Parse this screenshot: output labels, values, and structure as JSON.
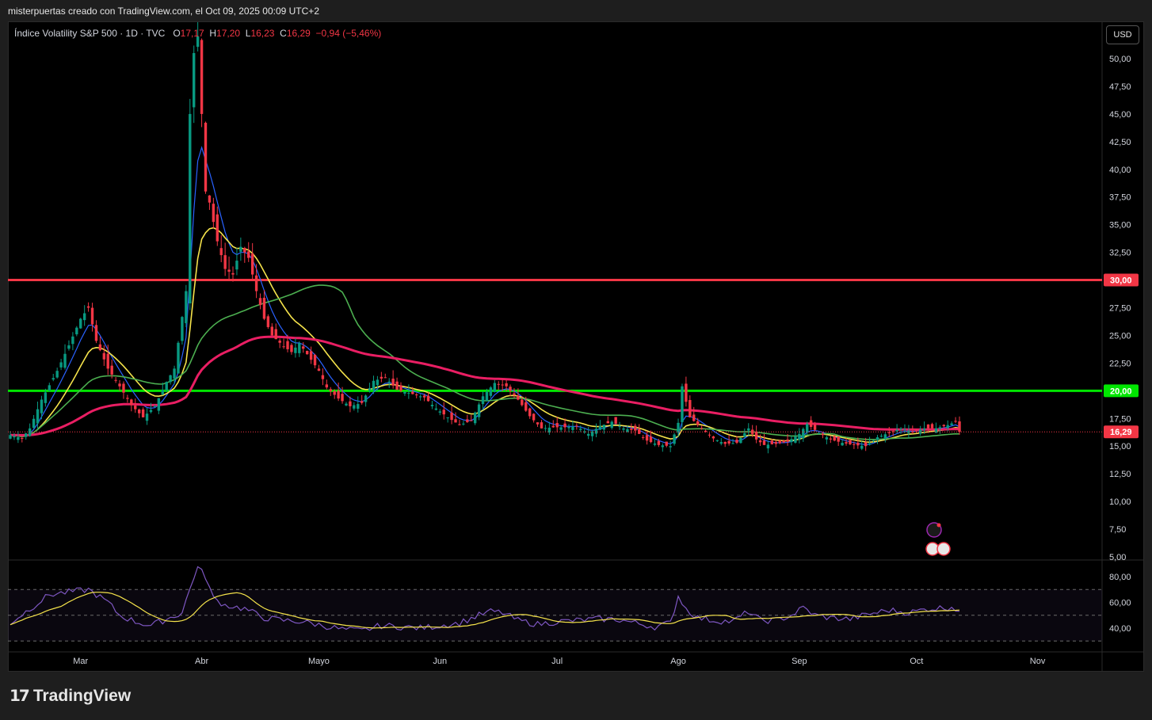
{
  "header": {
    "credit": "misterpuertas creado con TradingView.com, el Oct 09, 2025 00:09 UTC+2"
  },
  "legend": {
    "symbol": "Índice Volatility S&P 500 · 1D · TVC",
    "o_label": "O",
    "o_value": "17,17",
    "h_label": "H",
    "h_value": "17,20",
    "l_label": "L",
    "l_value": "16,23",
    "c_label": "C",
    "c_value": "16,29",
    "change": "−0,94 (−5,46%)"
  },
  "currency_button": "USD",
  "footer": {
    "brand": "TradingView"
  },
  "colors": {
    "up": "#089981",
    "down": "#f23645",
    "level_30": "#f23645",
    "level_20": "#00e600",
    "ma_blue": "#2962ff",
    "ma_yellow": "#f5e34b",
    "ma_green": "#4caf50",
    "ma_pink": "#e91e63",
    "rsi_line": "#7e57c2",
    "rsi_ma": "#f5e34b"
  },
  "chart_data": {
    "type": "candlestick",
    "price_axis": {
      "min": 5,
      "max": 52,
      "ticks": [
        "50,00",
        "47,50",
        "45,00",
        "42,50",
        "40,00",
        "37,50",
        "35,00",
        "32,50",
        "30,00",
        "27,50",
        "25,00",
        "22,50",
        "20,00",
        "17,50",
        "15,00",
        "12,50",
        "10,00",
        "7,50",
        "5,00"
      ]
    },
    "tick_values": [
      50,
      47.5,
      45,
      42.5,
      40,
      37.5,
      35,
      32.5,
      30,
      27.5,
      25,
      22.5,
      20,
      17.5,
      15,
      12.5,
      10,
      7.5,
      5
    ],
    "months": [
      {
        "label": "Mar",
        "day": 18
      },
      {
        "label": "Abr",
        "day": 49
      },
      {
        "label": "Mayo",
        "day": 79
      },
      {
        "label": "Jun",
        "day": 110
      },
      {
        "label": "Jul",
        "day": 140
      },
      {
        "label": "Ago",
        "day": 171
      },
      {
        "label": "Sep",
        "day": 202
      },
      {
        "label": "Oct",
        "day": 232
      },
      {
        "label": "Nov",
        "day": 263
      }
    ],
    "horizontal_levels": [
      {
        "value": 30,
        "label": "30,00",
        "color": "#f23645"
      },
      {
        "value": 20,
        "label": "20,00",
        "color": "#00e600"
      }
    ],
    "last_price": {
      "value": 16.29,
      "label": "16,29"
    },
    "first_day": 0,
    "last_day": 243,
    "anchors": [
      [
        0,
        16.0
      ],
      [
        3,
        15.7
      ],
      [
        5,
        16.6
      ],
      [
        8,
        19.2
      ],
      [
        12,
        21.8
      ],
      [
        15,
        24.1
      ],
      [
        18,
        26.5
      ],
      [
        20,
        27.5
      ],
      [
        22,
        24.5
      ],
      [
        25,
        22.0
      ],
      [
        28,
        20.4
      ],
      [
        31,
        18.7
      ],
      [
        34,
        17.6
      ],
      [
        37,
        18.6
      ],
      [
        40,
        20.8
      ],
      [
        42,
        22.0
      ],
      [
        45,
        29.0
      ],
      [
        46,
        45.0
      ],
      [
        47,
        50.5
      ],
      [
        48,
        52.0
      ],
      [
        49,
        45.0
      ],
      [
        50,
        38.0
      ],
      [
        51,
        37.0
      ],
      [
        53,
        33.5
      ],
      [
        55,
        31.0
      ],
      [
        57,
        30.5
      ],
      [
        59,
        33.0
      ],
      [
        61,
        32.0
      ],
      [
        63,
        29.0
      ],
      [
        65,
        26.5
      ],
      [
        67,
        25.0
      ],
      [
        70,
        24.0
      ],
      [
        72,
        23.5
      ],
      [
        74,
        24.3
      ],
      [
        76,
        23.3
      ],
      [
        79,
        21.8
      ],
      [
        81,
        20.3
      ],
      [
        84,
        19.3
      ],
      [
        87,
        18.6
      ],
      [
        90,
        18.9
      ],
      [
        93,
        20.9
      ],
      [
        96,
        21.2
      ],
      [
        99,
        20.1
      ],
      [
        103,
        19.7
      ],
      [
        106,
        19.4
      ],
      [
        109,
        18.4
      ],
      [
        112,
        17.6
      ],
      [
        115,
        16.9
      ],
      [
        118,
        17.3
      ],
      [
        121,
        19.5
      ],
      [
        124,
        20.7
      ],
      [
        127,
        20.4
      ],
      [
        130,
        19.2
      ],
      [
        133,
        17.7
      ],
      [
        136,
        16.6
      ],
      [
        139,
        16.7
      ],
      [
        142,
        16.7
      ],
      [
        145,
        16.8
      ],
      [
        148,
        16.1
      ],
      [
        151,
        16.8
      ],
      [
        154,
        17.2
      ],
      [
        157,
        16.6
      ],
      [
        160,
        16.4
      ],
      [
        163,
        15.5
      ],
      [
        166,
        15.1
      ],
      [
        169,
        15.0
      ],
      [
        171,
        17.1
      ],
      [
        172,
        20.4
      ],
      [
        174,
        17.6
      ],
      [
        177,
        16.6
      ],
      [
        180,
        15.7
      ],
      [
        183,
        15.2
      ],
      [
        186,
        15.3
      ],
      [
        189,
        16.6
      ],
      [
        191,
        15.6
      ],
      [
        193,
        15.1
      ],
      [
        196,
        15.2
      ],
      [
        199,
        15.4
      ],
      [
        202,
        16.1
      ],
      [
        204,
        17.0
      ],
      [
        207,
        16.2
      ],
      [
        210,
        15.6
      ],
      [
        213,
        15.3
      ],
      [
        216,
        15.1
      ],
      [
        219,
        15.0
      ],
      [
        222,
        15.8
      ],
      [
        225,
        16.2
      ],
      [
        228,
        16.6
      ],
      [
        231,
        16.3
      ],
      [
        234,
        16.6
      ],
      [
        237,
        16.6
      ],
      [
        240,
        16.9
      ],
      [
        242,
        17.2
      ],
      [
        243,
        16.29
      ]
    ],
    "rsi": {
      "levels": [
        70,
        50,
        30
      ],
      "tick_labels": [
        "80,00",
        "60,00",
        "40,00"
      ],
      "tick_values": [
        80,
        60,
        40
      ],
      "min": 20,
      "max": 90,
      "anchors": [
        [
          0,
          44
        ],
        [
          5,
          55
        ],
        [
          10,
          66
        ],
        [
          15,
          68
        ],
        [
          20,
          70
        ],
        [
          25,
          60
        ],
        [
          28,
          50
        ],
        [
          32,
          45
        ],
        [
          36,
          42
        ],
        [
          40,
          47
        ],
        [
          44,
          52
        ],
        [
          47,
          80
        ],
        [
          48,
          87
        ],
        [
          50,
          80
        ],
        [
          52,
          63
        ],
        [
          55,
          58
        ],
        [
          60,
          55
        ],
        [
          65,
          48
        ],
        [
          70,
          46
        ],
        [
          75,
          45
        ],
        [
          80,
          42
        ],
        [
          85,
          39
        ],
        [
          90,
          38
        ],
        [
          95,
          42
        ],
        [
          100,
          41
        ],
        [
          105,
          40
        ],
        [
          110,
          42
        ],
        [
          115,
          44
        ],
        [
          120,
          50
        ],
        [
          123,
          53
        ],
        [
          126,
          52
        ],
        [
          130,
          46
        ],
        [
          135,
          43
        ],
        [
          140,
          45
        ],
        [
          145,
          46
        ],
        [
          150,
          47
        ],
        [
          155,
          47
        ],
        [
          160,
          44
        ],
        [
          165,
          41
        ],
        [
          169,
          44
        ],
        [
          171,
          65
        ],
        [
          173,
          55
        ],
        [
          176,
          48
        ],
        [
          180,
          46
        ],
        [
          185,
          45
        ],
        [
          189,
          53
        ],
        [
          192,
          46
        ],
        [
          196,
          46
        ],
        [
          200,
          50
        ],
        [
          203,
          56
        ],
        [
          206,
          50
        ],
        [
          210,
          48
        ],
        [
          215,
          47
        ],
        [
          220,
          51
        ],
        [
          225,
          54
        ],
        [
          230,
          52
        ],
        [
          235,
          55
        ],
        [
          240,
          56
        ],
        [
          241,
          57
        ],
        [
          243,
          53
        ]
      ]
    }
  }
}
